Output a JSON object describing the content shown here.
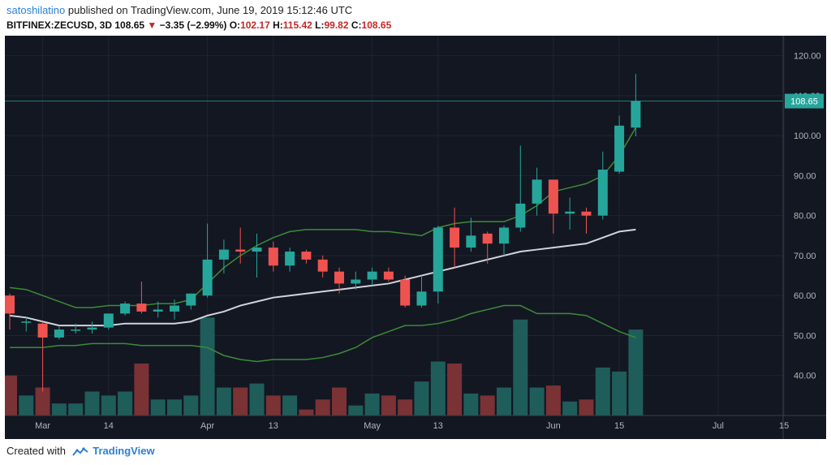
{
  "header": {
    "author": "satoshilatino",
    "published_text": " published on TradingView.com, June 19, 2019 15:12:46 UTC",
    "symbol": "BITFINEX:ZECUSD, 3D",
    "last": "108.65",
    "change_arrow": "▼",
    "change": "−3.35 (−2.99%)",
    "o_label": "O:",
    "o_value": "102.17",
    "h_label": "H:",
    "h_value": "115.42",
    "l_label": "L:",
    "l_value": "99.82",
    "c_label": "C:",
    "c_value": "108.65"
  },
  "footer": {
    "created_with": "Created with",
    "brand": "TradingView"
  },
  "colors": {
    "background": "#131722",
    "up": "#26a69a",
    "down": "#ef5350",
    "bb_band": "#3d8b37",
    "ma": "#d1d4dc"
  },
  "chart_data": {
    "type": "candlestick",
    "ylim": [
      30,
      125
    ],
    "y_ticks": [
      40,
      50,
      60,
      70,
      80,
      90,
      100,
      110,
      120
    ],
    "y_tick_labels": [
      "40.00",
      "50.00",
      "60.00",
      "70.00",
      "80.00",
      "90.00",
      "100.00",
      "110.00",
      "120.00"
    ],
    "x_tick_labels": [
      {
        "label": "Mar",
        "index": 2
      },
      {
        "label": "14",
        "index": 6
      },
      {
        "label": "Apr",
        "index": 12
      },
      {
        "label": "13",
        "index": 16
      },
      {
        "label": "May",
        "index": 22
      },
      {
        "label": "13",
        "index": 26
      },
      {
        "label": "Jun",
        "index": 33
      },
      {
        "label": "15",
        "index": 37
      },
      {
        "label": "Jul",
        "index": 43
      },
      {
        "label": "15",
        "index": 47
      }
    ],
    "last_price_label": "108.65",
    "last_price": 108.65,
    "candles": [
      {
        "o": 60,
        "h": 60.5,
        "l": 51.5,
        "c": 55.5
      },
      {
        "o": 53.5,
        "h": 54.5,
        "l": 51,
        "c": 53.5
      },
      {
        "o": 53,
        "h": 53.5,
        "l": 36,
        "c": 49.5
      },
      {
        "o": 49.5,
        "h": 52.5,
        "l": 49,
        "c": 51.5
      },
      {
        "o": 51.5,
        "h": 53,
        "l": 50.5,
        "c": 51.5
      },
      {
        "o": 51.5,
        "h": 53.5,
        "l": 50.5,
        "c": 52
      },
      {
        "o": 52,
        "h": 55.5,
        "l": 51.5,
        "c": 55.5
      },
      {
        "o": 55.5,
        "h": 58.5,
        "l": 55,
        "c": 58
      },
      {
        "o": 58,
        "h": 63.5,
        "l": 55.5,
        "c": 56
      },
      {
        "o": 56,
        "h": 58.5,
        "l": 54.5,
        "c": 56.5
      },
      {
        "o": 56,
        "h": 59,
        "l": 54,
        "c": 57.5
      },
      {
        "o": 57.5,
        "h": 60.5,
        "l": 56.5,
        "c": 60.5
      },
      {
        "o": 60,
        "h": 78,
        "l": 59.5,
        "c": 69
      },
      {
        "o": 69,
        "h": 74,
        "l": 65.5,
        "c": 71.5
      },
      {
        "o": 71.5,
        "h": 77,
        "l": 68,
        "c": 71
      },
      {
        "o": 71,
        "h": 75.5,
        "l": 64.5,
        "c": 72
      },
      {
        "o": 72,
        "h": 73.5,
        "l": 66,
        "c": 67.5
      },
      {
        "o": 67.5,
        "h": 72,
        "l": 66,
        "c": 71
      },
      {
        "o": 71,
        "h": 71.5,
        "l": 68,
        "c": 69
      },
      {
        "o": 69,
        "h": 70,
        "l": 64.5,
        "c": 66
      },
      {
        "o": 66,
        "h": 67,
        "l": 60.5,
        "c": 63
      },
      {
        "o": 63,
        "h": 66,
        "l": 61.5,
        "c": 64
      },
      {
        "o": 64,
        "h": 67,
        "l": 62.5,
        "c": 66
      },
      {
        "o": 66,
        "h": 67,
        "l": 63.5,
        "c": 64
      },
      {
        "o": 64,
        "h": 65,
        "l": 57,
        "c": 57.5
      },
      {
        "o": 57.5,
        "h": 65,
        "l": 57,
        "c": 61
      },
      {
        "o": 61,
        "h": 77.5,
        "l": 58,
        "c": 77
      },
      {
        "o": 77,
        "h": 82,
        "l": 67,
        "c": 72
      },
      {
        "o": 72,
        "h": 79.5,
        "l": 71,
        "c": 75
      },
      {
        "o": 75.5,
        "h": 76,
        "l": 68,
        "c": 73
      },
      {
        "o": 73,
        "h": 77.5,
        "l": 70,
        "c": 77
      },
      {
        "o": 77,
        "h": 97.5,
        "l": 76,
        "c": 83
      },
      {
        "o": 83,
        "h": 92,
        "l": 80,
        "c": 89
      },
      {
        "o": 89,
        "h": 89,
        "l": 75.5,
        "c": 80.5
      },
      {
        "o": 80.5,
        "h": 84.5,
        "l": 76.5,
        "c": 81
      },
      {
        "o": 81,
        "h": 82,
        "l": 75.5,
        "c": 80
      },
      {
        "o": 80,
        "h": 96,
        "l": 79,
        "c": 91.5
      },
      {
        "o": 91,
        "h": 105,
        "l": 90.5,
        "c": 102.5
      },
      {
        "o": 102,
        "h": 115.42,
        "l": 99.82,
        "c": 108.65
      }
    ],
    "volume": [
      40,
      35,
      37,
      33,
      33,
      36,
      35,
      36,
      43,
      34,
      34,
      35,
      54.5,
      37,
      37,
      38,
      35,
      35,
      31.5,
      34,
      37,
      32.5,
      35.5,
      35,
      34,
      38.5,
      43.5,
      43,
      35.5,
      35,
      37,
      54,
      37,
      37.5,
      33.5,
      34,
      42,
      41,
      51.5
    ],
    "series": [
      {
        "name": "",
        "values": [
          62,
          61.5,
          60,
          58.5,
          57,
          57,
          57.5,
          57.5,
          57.5,
          58,
          58,
          59,
          63,
          67,
          70,
          72.5,
          74.5,
          76,
          76.5,
          76.5,
          76.5,
          76.5,
          76,
          76,
          75.5,
          75,
          77,
          78,
          78.5,
          78.5,
          78.5,
          80,
          82.5,
          86,
          87,
          88,
          90,
          95,
          102
        ]
      },
      {
        "name": "",
        "values": [
          55,
          54.5,
          53.5,
          52.5,
          52.5,
          52.5,
          52.5,
          53,
          53,
          53,
          53,
          53.5,
          55,
          56,
          57.5,
          58.5,
          59.5,
          60,
          60.5,
          61,
          61.5,
          62,
          62.5,
          63,
          64,
          65,
          66,
          67,
          68,
          69,
          70,
          71,
          71.5,
          72,
          72.5,
          73,
          74.5,
          76,
          76.5
        ]
      },
      {
        "name": "",
        "values": [
          47,
          47,
          47,
          47.5,
          47.5,
          48,
          48,
          48,
          47.5,
          47.5,
          47.5,
          47.5,
          47,
          45,
          44,
          43.5,
          44,
          44,
          44,
          44.5,
          45.5,
          47,
          49.5,
          51,
          52.5,
          52.5,
          53,
          54,
          55.5,
          56.5,
          57.5,
          57.5,
          55.5,
          55.5,
          55.5,
          55,
          53,
          51,
          49.5
        ]
      }
    ]
  }
}
